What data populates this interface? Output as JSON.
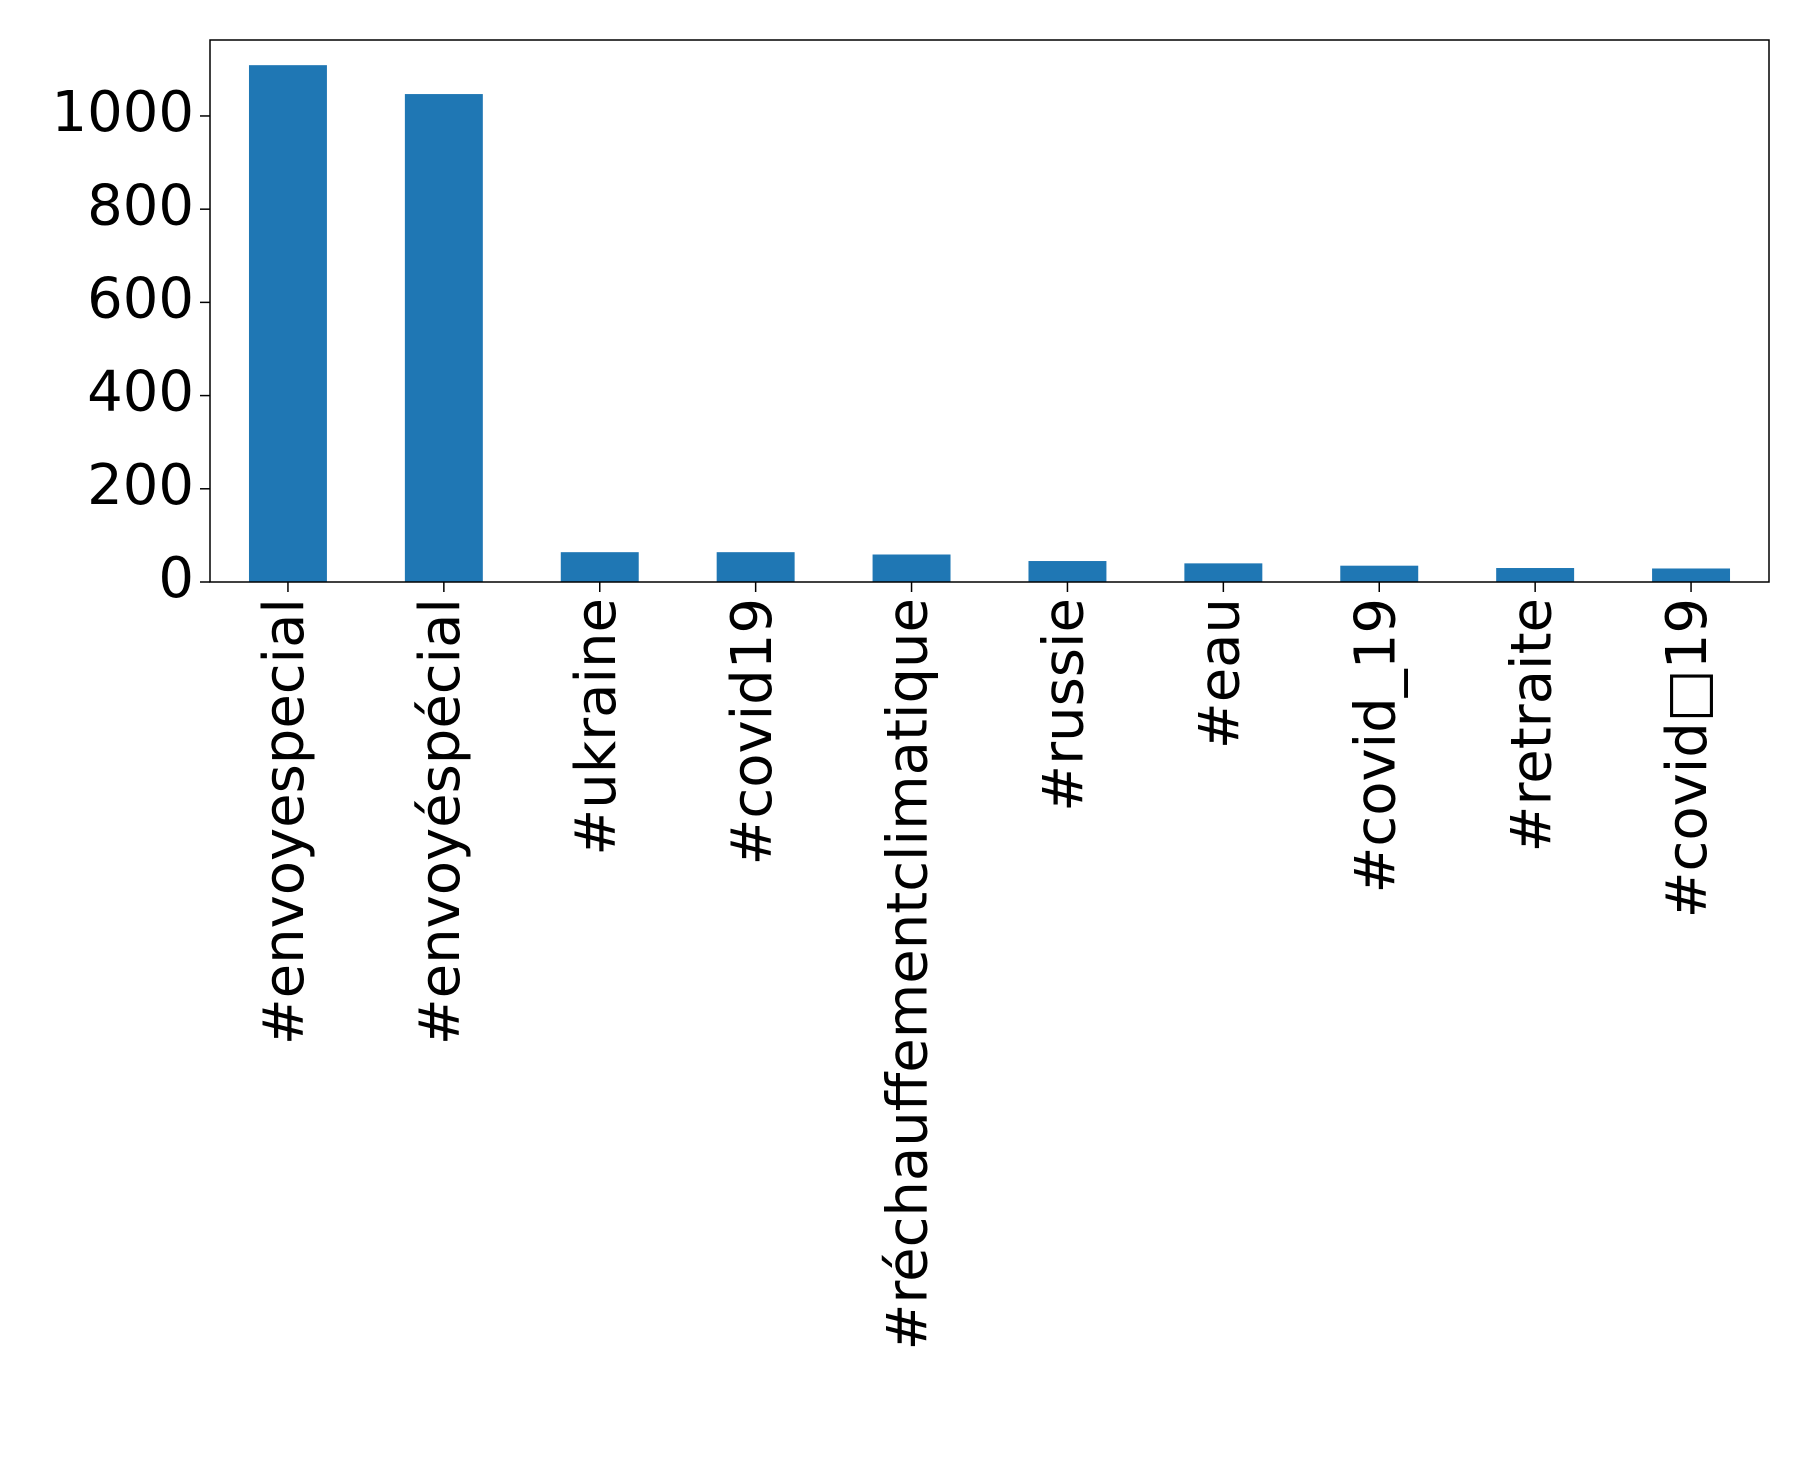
{
  "chart_data": {
    "type": "bar",
    "categories": [
      "#envoyespecial",
      "#envoyéspécial",
      "#ukraine",
      "#covid19",
      "#réchauffementclimatique",
      "#russie",
      "#eau",
      "#covid_19",
      "#retraite",
      "#covid□19"
    ],
    "values": [
      1109,
      1047,
      64,
      64,
      59,
      45,
      40,
      35,
      30,
      29
    ],
    "color": "#1f77b4",
    "ylim": [
      0,
      1163
    ],
    "yticks": [
      0,
      200,
      400,
      600,
      800,
      1000
    ]
  }
}
